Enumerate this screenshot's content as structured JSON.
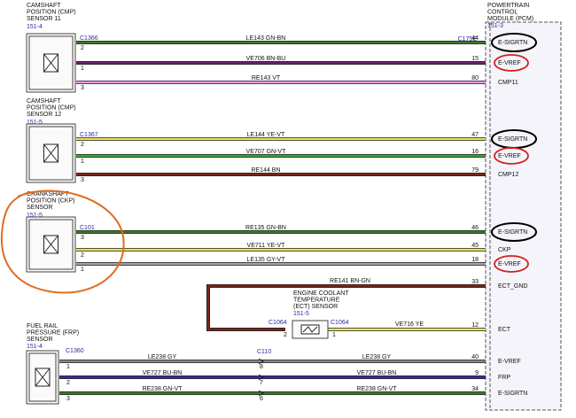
{
  "pcm": {
    "title_lines": [
      "POWERTRAIN",
      "CONTROL",
      "MODULE (PCM)"
    ],
    "ref": "151-3",
    "connector": "C175E"
  },
  "sensors": [
    {
      "title_lines": [
        "CAMSHAFT",
        "POSITION (CMP)",
        "SENSOR 11"
      ],
      "ref": "151-4",
      "connector": "C1366",
      "wires": [
        {
          "pin": "2",
          "circuit": "LE143  GN-BN",
          "pcm_pin": "44",
          "signal": "E-SIGRTN"
        },
        {
          "pin": "1",
          "circuit": "VE706  BN-BU",
          "pcm_pin": "15",
          "signal": "E-VREF"
        },
        {
          "pin": "3",
          "circuit": "RE143  VT",
          "pcm_pin": "80",
          "signal": "CMP11"
        }
      ]
    },
    {
      "title_lines": [
        "CAMSHAFT",
        "POSITION (CMP)",
        "SENSOR 12"
      ],
      "ref": "151-5",
      "connector": "C1367",
      "wires": [
        {
          "pin": "2",
          "circuit": "LE144  YE-VT",
          "pcm_pin": "47",
          "signal": "E-SIGRTN"
        },
        {
          "pin": "1",
          "circuit": "VE707  GN-VT",
          "pcm_pin": "16",
          "signal": "E-VREF"
        },
        {
          "pin": "3",
          "circuit": "RE144  BN",
          "pcm_pin": "79",
          "signal": "CMP12"
        }
      ]
    },
    {
      "title_lines": [
        "CRANKSHAFT",
        "POSITION (CKP)",
        "SENSOR"
      ],
      "ref": "151-5",
      "connector": "C101",
      "wires": [
        {
          "pin": "3",
          "circuit": "RE135  GN-BN",
          "pcm_pin": "46",
          "signal": "E-SIGRTN"
        },
        {
          "pin": "2",
          "circuit": "VE711  YE-VT",
          "pcm_pin": "45",
          "signal": "CKP"
        },
        {
          "pin": "1",
          "circuit": "LE135  GY-VT",
          "pcm_pin": "18",
          "signal": "E-VREF"
        }
      ]
    }
  ],
  "ect": {
    "title_lines": [
      "ENGINE COOLANT",
      "TEMPERATURE",
      "(ECT) SENSOR"
    ],
    "ref": "151-5",
    "connector_left": "C1064",
    "connector_right": "C1064",
    "wires": [
      {
        "pin": "2",
        "circuit": "RE141  BN-GN",
        "pcm_pin": "33",
        "signal": "ECT_GND"
      },
      {
        "pin": "1",
        "circuit": "VE716  YE",
        "pcm_pin": "12",
        "signal": "ECT"
      }
    ]
  },
  "frp": {
    "title_lines": [
      "FUEL RAIL",
      "PRESSURE (FRP)",
      "SENSOR"
    ],
    "ref": "151-4",
    "connector": "C1360",
    "inline_connector": "C110",
    "wires": [
      {
        "pin": "1",
        "circuit": "LE238  GY",
        "inline_pin": "8",
        "circuit_2": "LE238  GY",
        "pcm_pin": "40",
        "signal": "E-VREF"
      },
      {
        "pin": "2",
        "circuit": "VE727  BU-BN",
        "inline_pin": "7",
        "circuit_2": "VE727  BU-BN",
        "pcm_pin": "9",
        "signal": "FRP"
      },
      {
        "pin": "3",
        "circuit": "RE238  GN-VT",
        "inline_pin": "6",
        "circuit_2": "RE238  GN-VT",
        "pcm_pin": "34",
        "signal": "E-SIGRTN"
      }
    ]
  }
}
